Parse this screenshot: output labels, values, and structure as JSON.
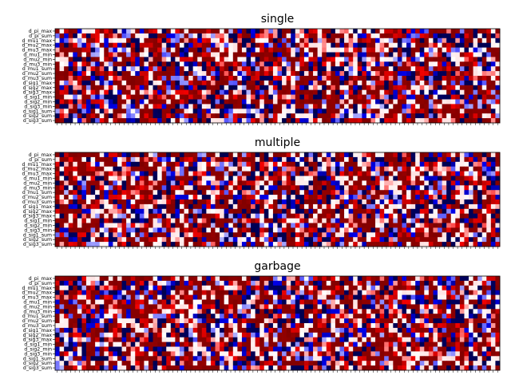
{
  "chart_data": [
    {
      "type": "heatmap",
      "title": "single",
      "rows": [
        "d_pi_max",
        "d_pi_sum",
        "d_mu1_max",
        "d_mu2_max",
        "d_mu3_max",
        "d_mu1_min",
        "d_mu2_min",
        "d_mu3_min",
        "d_mu1_sum",
        "d_mu2_sum",
        "d_mu3_sum",
        "d_sig1_max",
        "d_sig2_max",
        "d_sig3_max",
        "d_sig1_min",
        "d_sig2_min",
        "d_sig3_min",
        "d_sig1_sum",
        "d_sig2_sum",
        "d_sig3_sum"
      ],
      "n_columns": 100,
      "colormap": "seismic",
      "value_range": [
        -1,
        1
      ],
      "xticks": "unlabeled",
      "seed": 11
    },
    {
      "type": "heatmap",
      "title": "multiple",
      "rows": [
        "d_pi_max",
        "d_pi_sum",
        "d_mu1_max",
        "d_mu2_max",
        "d_mu3_max",
        "d_mu1_min",
        "d_mu2_min",
        "d_mu3_min",
        "d_mu1_sum",
        "d_mu2_sum",
        "d_mu3_sum",
        "d_sig1_max",
        "d_sig2_max",
        "d_sig3_max",
        "d_sig1_min",
        "d_sig2_min",
        "d_sig3_min",
        "d_sig1_sum",
        "d_sig2_sum",
        "d_sig3_sum"
      ],
      "n_columns": 100,
      "colormap": "seismic",
      "value_range": [
        -1,
        1
      ],
      "xticks": "unlabeled",
      "seed": 23
    },
    {
      "type": "heatmap",
      "title": "garbage",
      "rows": [
        "d_pi_max",
        "d_pi_sum",
        "d_mu1_max",
        "d_mu2_max",
        "d_mu3_max",
        "d_mu1_min",
        "d_mu2_min",
        "d_mu3_min",
        "d_mu1_sum",
        "d_mu2_sum",
        "d_mu3_sum",
        "d_sig1_max",
        "d_sig2_max",
        "d_sig3_max",
        "d_sig1_min",
        "d_sig2_min",
        "d_sig3_min",
        "d_sig1_sum",
        "d_sig2_sum",
        "d_sig3_sum"
      ],
      "n_columns": 100,
      "colormap": "seismic",
      "value_range": [
        -1,
        1
      ],
      "xticks": "unlabeled",
      "seed": 37
    }
  ]
}
